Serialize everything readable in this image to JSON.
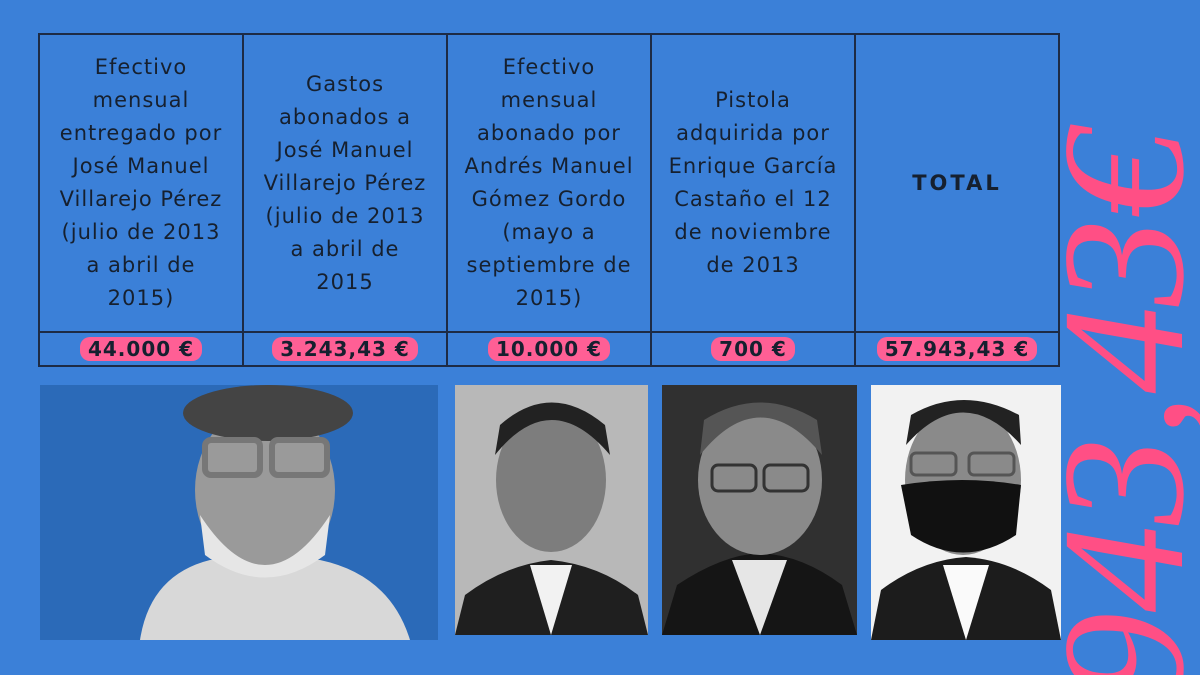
{
  "table": {
    "headers": [
      "Efectivo mensual entregado por José Manuel Villarejo Pérez (julio de 2013 a abril de 2015)",
      "Gastos abonados a José Manuel Villarejo Pérez (julio de 2013 a abril de 2015",
      "Efectivo mensual abonado por Andrés Manuel Gómez Gordo (mayo a septiembre de 2015)",
      "Pistola adquirida por Enrique García Castaño el 12 de noviembre de 2013",
      "TOTAL"
    ],
    "values": [
      "44.000 €",
      "3.243,43 €",
      "10.000 €",
      "700 €",
      "57.943,43 €"
    ]
  },
  "decoration": "943,43€"
}
